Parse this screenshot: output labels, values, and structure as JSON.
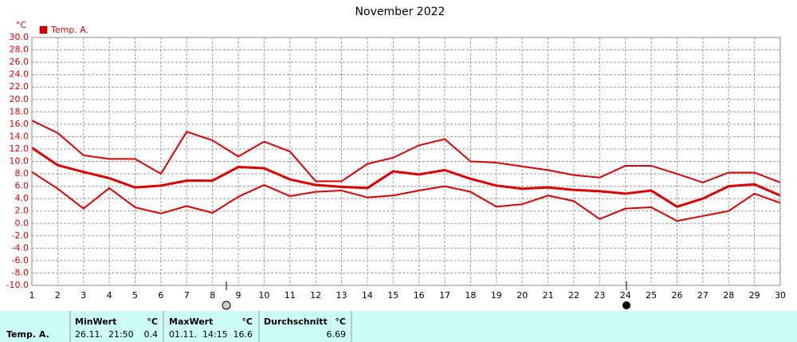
{
  "chart_data": {
    "type": "line",
    "title": "November 2022",
    "y_unit": "°C",
    "legend": "Temp. A.",
    "color": "#e00000",
    "x": [
      1,
      2,
      3,
      4,
      5,
      6,
      7,
      8,
      9,
      10,
      11,
      12,
      13,
      14,
      15,
      16,
      17,
      18,
      19,
      20,
      21,
      22,
      23,
      24,
      25,
      26,
      27,
      28,
      29,
      30
    ],
    "xlim": [
      1,
      30
    ],
    "xticks": [
      1,
      2,
      3,
      4,
      5,
      6,
      7,
      8,
      9,
      10,
      11,
      12,
      13,
      14,
      15,
      16,
      17,
      18,
      19,
      20,
      21,
      22,
      23,
      24,
      25,
      26,
      27,
      28,
      29,
      30
    ],
    "ylim": [
      -10,
      30
    ],
    "yticks": [
      {
        "value": -10,
        "label": "-10.0"
      },
      {
        "value": -8,
        "label": "-8.0"
      },
      {
        "value": -6,
        "label": "-6.0"
      },
      {
        "value": -4,
        "label": "-4.0"
      },
      {
        "value": -2,
        "label": "-2.0"
      },
      {
        "value": 0,
        "label": "0.0"
      },
      {
        "value": 2,
        "label": "2.0"
      },
      {
        "value": 4,
        "label": "4.0"
      },
      {
        "value": 6,
        "label": "6.0"
      },
      {
        "value": 8,
        "label": "8.0"
      },
      {
        "value": 10,
        "label": "10.0"
      },
      {
        "value": 12,
        "label": "12.0"
      },
      {
        "value": 14,
        "label": "14.0"
      },
      {
        "value": 16,
        "label": "16.0"
      },
      {
        "value": 18,
        "label": "18.0"
      },
      {
        "value": 20,
        "label": "20.0"
      },
      {
        "value": 22,
        "label": "22.0"
      },
      {
        "value": 24,
        "label": "24.0"
      },
      {
        "value": 26,
        "label": "26.0"
      },
      {
        "value": 28,
        "label": "28.0"
      },
      {
        "value": 30,
        "label": "30.0"
      }
    ],
    "grid": true,
    "series": [
      {
        "color": "#e00000",
        "values": [
          16.6,
          14.6,
          11.0,
          10.4,
          10.4,
          8.0,
          14.8,
          13.4,
          10.8,
          13.2,
          11.6,
          6.8,
          6.8,
          9.6,
          10.6,
          12.6,
          13.6,
          10.0,
          9.8,
          9.2,
          8.6,
          7.8,
          7.4,
          9.3,
          9.3,
          8.0,
          6.6,
          8.2,
          8.2,
          6.6
        ]
      },
      {
        "color": "#e00000",
        "values": [
          12.2,
          9.4,
          8.3,
          7.3,
          5.8,
          6.1,
          6.9,
          6.9,
          9.1,
          8.9,
          7.1,
          6.2,
          5.9,
          5.7,
          8.4,
          7.9,
          8.6,
          7.2,
          6.1,
          5.6,
          5.8,
          5.4,
          5.2,
          4.8,
          5.3,
          2.7,
          4.0,
          6.0,
          6.3,
          4.5
        ]
      },
      {
        "color": "#e00000",
        "values": [
          8.3,
          5.6,
          2.4,
          5.7,
          2.6,
          1.6,
          2.8,
          1.7,
          4.3,
          6.2,
          4.4,
          5.1,
          5.3,
          4.2,
          4.5,
          5.3,
          6.0,
          5.1,
          2.7,
          3.1,
          4.5,
          3.6,
          0.7,
          2.4,
          2.6,
          0.4,
          1.2,
          2.0,
          4.8,
          3.3
        ]
      }
    ]
  },
  "table": {
    "row_label": "Temp. A.",
    "columns": [
      {
        "header": "MinWert",
        "unit": "°C",
        "time": "26.11.  21:50",
        "value": "0.4"
      },
      {
        "header": "MaxWert",
        "unit": "°C",
        "time": "01.11.  14:15",
        "value": "16.6"
      },
      {
        "header": "Durchschnitt",
        "unit": "°C",
        "value": "6.69"
      }
    ]
  }
}
